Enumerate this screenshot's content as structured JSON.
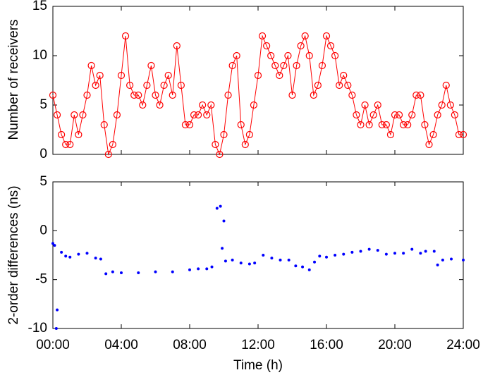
{
  "chart_data": [
    {
      "type": "line",
      "ylabel": "Number of receivers",
      "x": [
        0,
        0.25,
        0.5,
        0.75,
        1,
        1.25,
        1.5,
        1.75,
        2,
        2.25,
        2.5,
        2.75,
        3,
        3.25,
        3.5,
        3.75,
        4,
        4.25,
        4.5,
        4.75,
        5,
        5.25,
        5.5,
        5.75,
        6,
        6.25,
        6.5,
        6.75,
        7,
        7.25,
        7.5,
        7.75,
        8,
        8.25,
        8.5,
        8.75,
        9,
        9.25,
        9.5,
        9.75,
        10,
        10.25,
        10.5,
        10.75,
        11,
        11.25,
        11.5,
        11.75,
        12,
        12.25,
        12.5,
        12.75,
        13,
        13.25,
        13.5,
        13.75,
        14,
        14.25,
        14.5,
        14.75,
        15,
        15.25,
        15.5,
        15.75,
        16,
        16.25,
        16.5,
        16.75,
        17,
        17.25,
        17.5,
        17.75,
        18,
        18.25,
        18.5,
        18.75,
        19,
        19.25,
        19.5,
        19.75,
        20,
        20.25,
        20.5,
        20.75,
        21,
        21.25,
        21.5,
        21.75,
        22,
        22.25,
        22.5,
        22.75,
        23,
        23.25,
        23.5,
        23.75,
        24
      ],
      "series": [
        {
          "name": "receivers",
          "color": "#ff0000",
          "values": [
            6,
            4,
            2,
            1,
            1,
            4,
            2,
            4,
            6,
            9,
            7,
            8,
            3,
            0,
            1,
            4,
            8,
            12,
            7,
            6,
            6,
            5,
            7,
            9,
            6,
            5,
            7,
            8,
            6,
            11,
            7,
            3,
            3,
            4,
            4,
            5,
            4,
            5,
            1,
            0,
            2,
            6,
            9,
            10,
            3,
            1,
            2,
            5,
            8,
            12,
            11,
            10,
            9,
            8,
            9,
            10,
            6,
            9,
            11,
            12,
            10,
            6,
            7,
            9,
            12,
            11,
            10,
            7,
            8,
            7,
            6,
            4,
            3,
            5,
            3,
            4,
            5,
            3,
            3,
            2,
            4,
            4,
            3,
            3,
            4,
            6,
            6,
            3,
            1,
            2,
            4,
            5,
            7,
            5,
            4,
            2,
            2
          ]
        }
      ],
      "xlim": [
        0,
        24
      ],
      "ylim": [
        0,
        15
      ],
      "yticks": [
        0,
        5,
        10,
        15
      ]
    },
    {
      "type": "scatter",
      "xlabel": "Time (h)",
      "ylabel": "2-order differences (ns)",
      "x": [
        0,
        0.1,
        0.2,
        0.25,
        0.5,
        0.75,
        1,
        1.5,
        2,
        2.5,
        2.8,
        3.1,
        3.5,
        4,
        5,
        6,
        7,
        8,
        8.5,
        9,
        9.3,
        9.6,
        9.8,
        9.9,
        10,
        10.1,
        10.5,
        11,
        11.5,
        11.8,
        12.3,
        12.8,
        13.3,
        13.8,
        14.2,
        14.6,
        15,
        15.3,
        15.6,
        16,
        16.5,
        17,
        17.5,
        18,
        18.5,
        19,
        19.5,
        20,
        20.5,
        21,
        21.5,
        21.8,
        22.3,
        22.5,
        22.8,
        23.3,
        24
      ],
      "series": [
        {
          "name": "differences",
          "color": "#0000ff",
          "values": [
            -1.3,
            -1.5,
            -10,
            -8.1,
            -2.2,
            -2.6,
            -2.7,
            -2.4,
            -2.3,
            -2.8,
            -2.9,
            -4.4,
            -4.2,
            -4.3,
            -4.3,
            -4.2,
            -4.2,
            -4,
            -3.9,
            -3.9,
            -3.7,
            2.3,
            2.5,
            -1.8,
            1,
            -3.1,
            -3,
            -3.3,
            -3.4,
            -3.3,
            -2.5,
            -2.8,
            -3,
            -3,
            -3.6,
            -3.7,
            -4,
            -3.2,
            -2.6,
            -2.7,
            -2.5,
            -2.4,
            -2.2,
            -2.1,
            -1.9,
            -2,
            -2.4,
            -2.3,
            -2.3,
            -1.9,
            -2.3,
            -2.1,
            -2.1,
            -3.5,
            -3,
            -2.9,
            -3
          ]
        }
      ],
      "xlim": [
        0,
        24
      ],
      "xticks": [
        {
          "value": 0,
          "label": "00:00"
        },
        {
          "value": 4,
          "label": "04:00"
        },
        {
          "value": 8,
          "label": "08:00"
        },
        {
          "value": 12,
          "label": "12:00"
        },
        {
          "value": 16,
          "label": "16:00"
        },
        {
          "value": 20,
          "label": "20:00"
        },
        {
          "value": 24,
          "label": "24:00"
        }
      ],
      "ylim": [
        -10,
        5
      ],
      "yticks": [
        -10,
        -5,
        0,
        5
      ]
    }
  ]
}
